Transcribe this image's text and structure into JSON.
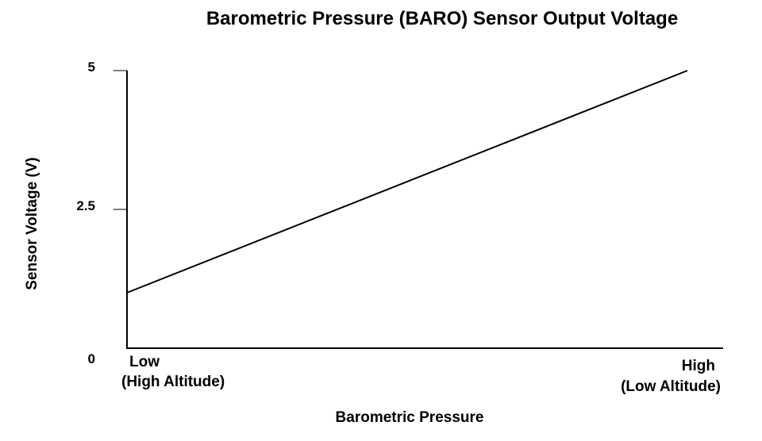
{
  "chart_data": {
    "type": "line",
    "title": "Barometric Pressure (BARO) Sensor Output Voltage",
    "xlabel": "Barometric Pressure",
    "ylabel": "Sensor Voltage (V)",
    "ylim": [
      0,
      5
    ],
    "yticks": [
      {
        "value": 0,
        "label": "0"
      },
      {
        "value": 2.5,
        "label": "2.5"
      },
      {
        "value": 5,
        "label": "5"
      }
    ],
    "x_ends": {
      "low": {
        "line1": "Low",
        "line2": "(High Altitude)"
      },
      "high": {
        "line1": "High",
        "line2": "(Low Altitude)"
      }
    },
    "grid": false,
    "series": [
      {
        "color": "#000000",
        "points": [
          {
            "x": "Low",
            "y": 1.0
          },
          {
            "x": "High",
            "y": 5.0
          }
        ]
      }
    ]
  }
}
